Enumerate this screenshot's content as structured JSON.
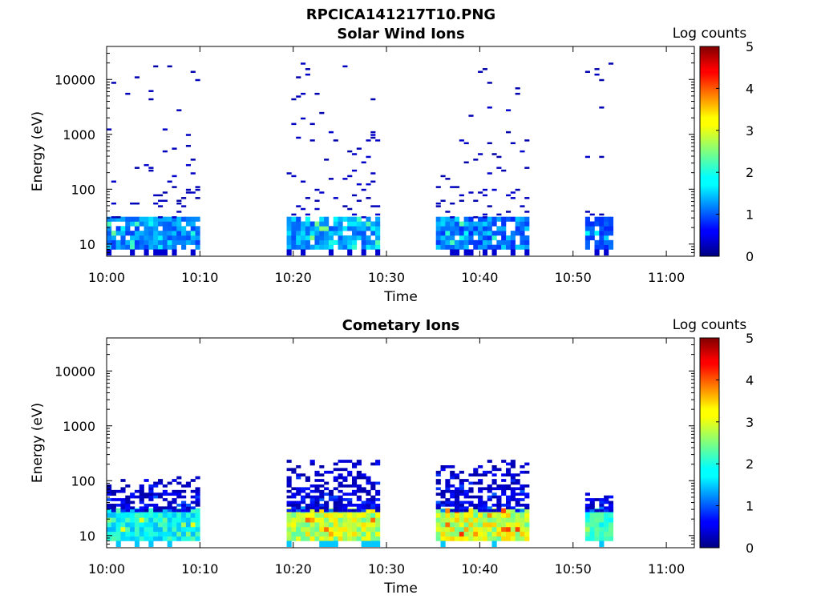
{
  "figure": {
    "title": "RPCICA141217T10.PNG"
  },
  "colormap": {
    "name": "jet",
    "label": "Log counts",
    "range": [
      0,
      5
    ],
    "ticks": [
      "0",
      "1",
      "2",
      "3",
      "4",
      "5"
    ]
  },
  "chart_data": [
    {
      "type": "heatmap",
      "title": "Solar Wind Ions",
      "xlabel": "Time",
      "ylabel": "Energy (eV)",
      "xlim": [
        "10:00",
        "11:03"
      ],
      "ylim": [
        6,
        40000
      ],
      "yscale": "log",
      "xticks": [
        "10:00",
        "10:10",
        "10:20",
        "10:30",
        "10:40",
        "10:50",
        "11:00"
      ],
      "yticks": [
        "10",
        "100",
        "1000",
        "10000"
      ],
      "colorbar_label": "Log counts",
      "clim": [
        0,
        5
      ],
      "grid": false,
      "time_bins_min": [
        [
          0,
          9.7
        ],
        [
          19.3,
          29.0
        ],
        [
          35.3,
          45.0
        ],
        [
          51.3,
          54.3
        ]
      ],
      "low_energy_band": {
        "energy_ev": [
          8,
          27
        ],
        "log_counts": [
          [
            0.9,
            1.6
          ],
          [
            1.0,
            1.8
          ],
          [
            0.8,
            1.7
          ],
          [
            0.8,
            1.2
          ]
        ]
      },
      "sparse_counts": {
        "energy_ev": [
          30,
          20000
        ],
        "log_counts": 0.2
      }
    },
    {
      "type": "heatmap",
      "title": "Cometary Ions",
      "xlabel": "Time",
      "ylabel": "Energy (eV)",
      "xlim": [
        "10:00",
        "11:03"
      ],
      "ylim": [
        6,
        40000
      ],
      "yscale": "log",
      "xticks": [
        "10:00",
        "10:10",
        "10:20",
        "10:30",
        "10:40",
        "10:50",
        "11:00"
      ],
      "yticks": [
        "10",
        "100",
        "1000",
        "10000"
      ],
      "colorbar_label": "Log counts",
      "clim": [
        0,
        5
      ],
      "grid": false,
      "time_bins_min": [
        [
          0,
          9.7
        ],
        [
          19.3,
          29.0
        ],
        [
          35.3,
          45.0
        ],
        [
          51.3,
          54.3
        ]
      ],
      "low_energy_band": {
        "energy_ev": [
          8,
          27
        ],
        "log_counts": [
          [
            1.5,
            2.3
          ],
          [
            2.3,
            3.3
          ],
          [
            2.3,
            3.4
          ],
          [
            1.8,
            2.4
          ]
        ]
      },
      "mid_energy_counts": {
        "energy_ev": [
          27,
          220
        ],
        "log_counts": [
          0.2,
          1.6
        ]
      }
    }
  ]
}
